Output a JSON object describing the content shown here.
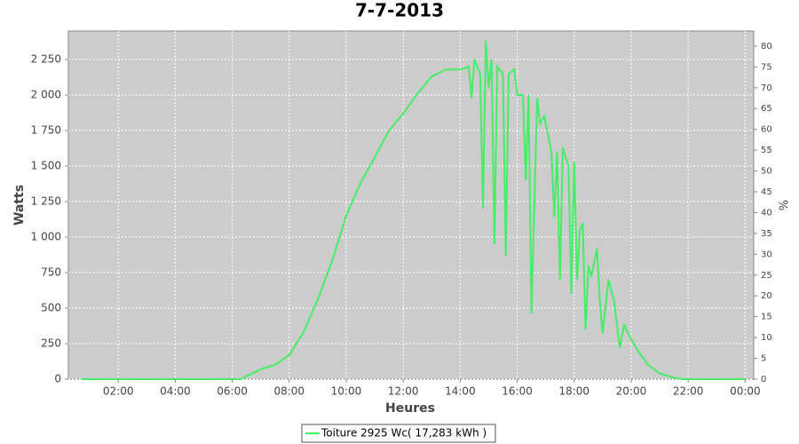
{
  "chart_data": {
    "type": "line",
    "title": "7-7-2013",
    "x_label": "Heures",
    "y_label": "Watts",
    "y2_label": "%",
    "x": [
      0.7,
      6.3,
      6.6,
      7.0,
      7.5,
      8.0,
      8.5,
      9.0,
      9.5,
      10.0,
      10.5,
      11.0,
      11.5,
      12.0,
      12.5,
      13.0,
      13.5,
      14.0,
      14.3,
      14.4,
      14.5,
      14.7,
      14.8,
      14.9,
      15.0,
      15.1,
      15.2,
      15.3,
      15.5,
      15.6,
      15.7,
      15.9,
      16.0,
      16.2,
      16.3,
      16.4,
      16.5,
      16.7,
      16.8,
      16.95,
      17.2,
      17.3,
      17.4,
      17.5,
      17.6,
      17.8,
      17.9,
      18.0,
      18.1,
      18.2,
      18.3,
      18.4,
      18.5,
      18.6,
      18.8,
      18.9,
      19.0,
      19.2,
      19.4,
      19.6,
      19.75,
      20.0,
      20.3,
      20.6,
      21.0,
      21.5,
      21.8,
      24.0
    ],
    "series": [
      {
        "name": "Toiture 2925 Wc( 17,283 kWh )",
        "color": "#44ee66",
        "values": [
          0,
          0,
          30,
          70,
          100,
          170,
          330,
          560,
          830,
          1150,
          1380,
          1560,
          1750,
          1870,
          2010,
          2130,
          2180,
          2180,
          2200,
          1980,
          2250,
          2150,
          1200,
          2380,
          2050,
          2250,
          950,
          2200,
          2150,
          870,
          2150,
          2180,
          2000,
          2000,
          1400,
          2000,
          460,
          1980,
          1800,
          1850,
          1600,
          1140,
          1600,
          700,
          1630,
          1500,
          600,
          1530,
          700,
          1050,
          1100,
          350,
          800,
          720,
          920,
          550,
          320,
          700,
          550,
          220,
          380,
          280,
          180,
          100,
          40,
          10,
          0,
          0
        ]
      }
    ],
    "xlim": [
      0.25,
      24.3
    ],
    "xticks": [
      {
        "value": 2,
        "label": "02:00"
      },
      {
        "value": 4,
        "label": "04:00"
      },
      {
        "value": 6,
        "label": "06:00"
      },
      {
        "value": 8,
        "label": "08:00"
      },
      {
        "value": 10,
        "label": "10:00"
      },
      {
        "value": 12,
        "label": "12:00"
      },
      {
        "value": 14,
        "label": "14:00"
      },
      {
        "value": 16,
        "label": "16:00"
      },
      {
        "value": 18,
        "label": "18:00"
      },
      {
        "value": 20,
        "label": "20:00"
      },
      {
        "value": 22,
        "label": "22:00"
      },
      {
        "value": 24,
        "label": "00:00"
      }
    ],
    "ylim": [
      0,
      2450
    ],
    "yticks": [
      0,
      250,
      500,
      750,
      {
        "value": 1000,
        "label": "1 000"
      },
      {
        "value": 1250,
        "label": "1 250"
      },
      {
        "value": 1500,
        "label": "1 500"
      },
      {
        "value": 1750,
        "label": "1 750"
      },
      {
        "value": 2000,
        "label": "2 000"
      },
      {
        "value": 2250,
        "label": "2 250"
      }
    ],
    "y2lim": [
      0,
      83.6
    ],
    "y2ticks": [
      0,
      5,
      10,
      15,
      20,
      25,
      30,
      35,
      40,
      45,
      50,
      55,
      60,
      65,
      70,
      75,
      80
    ],
    "grid": true
  }
}
